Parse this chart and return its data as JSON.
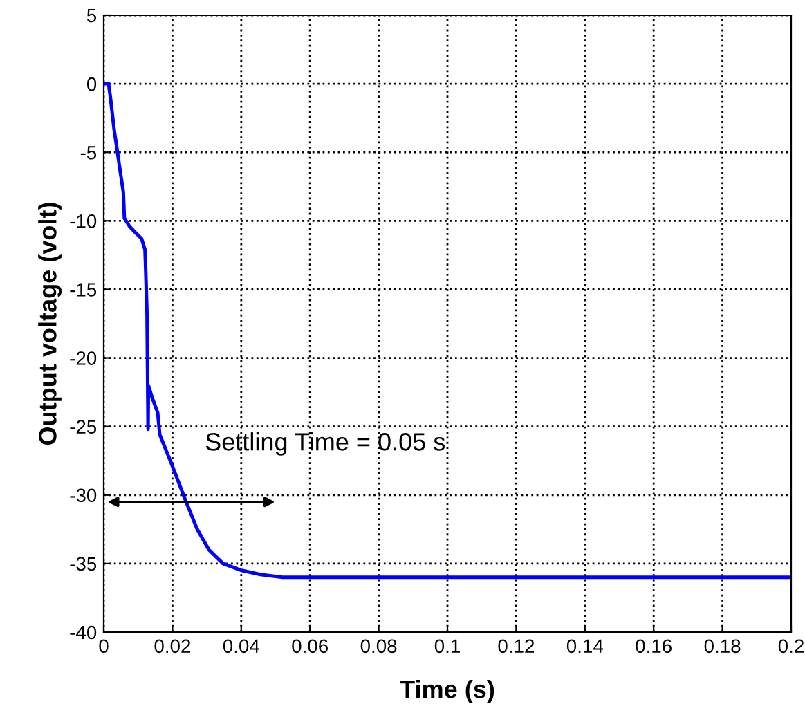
{
  "chart_data": {
    "type": "line",
    "xlabel": "Time (s)",
    "ylabel": "Output voltage (volt)",
    "x": [
      0,
      0.0014,
      0.002,
      0.003,
      0.004,
      0.0048,
      0.0057,
      0.006,
      0.0075,
      0.009,
      0.011,
      0.012,
      0.0122,
      0.0126,
      0.0129,
      0.013,
      0.0141,
      0.0157,
      0.0163,
      0.0197,
      0.0238,
      0.0272,
      0.0306,
      0.0347,
      0.0401,
      0.0456,
      0.052,
      0.2
    ],
    "series": [
      {
        "color": "#0000ff",
        "values": [
          0,
          0,
          -1.1,
          -3.3,
          -5,
          -6.4,
          -7.9,
          -9.8,
          -10.4,
          -10.8,
          -11.3,
          -12.1,
          -13.5,
          -16.9,
          -25.2,
          -22,
          -22.9,
          -24,
          -25.6,
          -27.7,
          -30.4,
          -32.5,
          -34.0,
          -35.0,
          -35.5,
          -35.8,
          -36.0,
          -36.0
        ]
      }
    ],
    "annotations": [
      "Settling Time = 0.05 s"
    ],
    "xlim": [
      0,
      0.2
    ],
    "ylim": [
      -40,
      5
    ],
    "xticks": [
      0,
      0.02,
      0.04,
      0.06,
      0.08,
      0.1,
      0.12,
      0.14,
      0.16,
      0.18,
      0.2
    ],
    "yticks": [
      -40,
      -35,
      -30,
      -25,
      -20,
      -15,
      -10,
      -5,
      0,
      5
    ],
    "grid": true,
    "line_style": "solid",
    "marker": "none"
  }
}
